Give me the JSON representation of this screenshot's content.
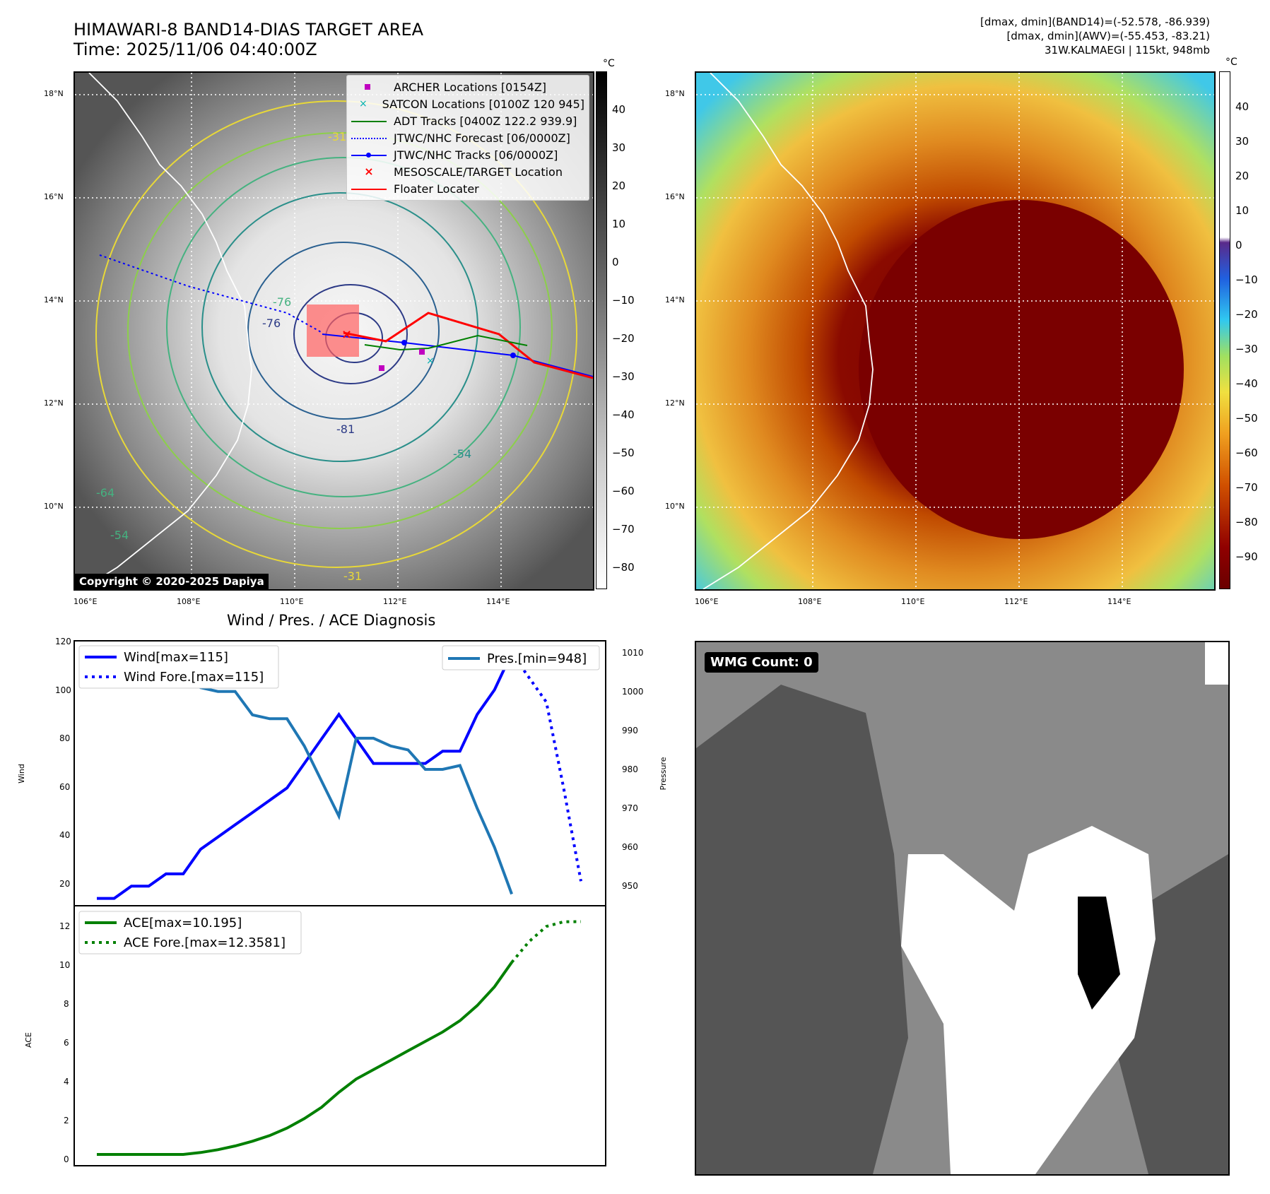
{
  "header": {
    "title_line1": "HIMAWARI-8 BAND14-DIAS TARGET AREA",
    "title_line2": "Time: 2025/11/06 04:40:00Z",
    "info_line1": "[dmax, dmin](BAND14)=(-52.578, -86.939)",
    "info_line2": "[dmax, dmin](AWV)=(-55.453, -83.21)",
    "info_line3": "31W.KALMAEGI | 115kt, 948mb"
  },
  "map_axes": {
    "lat_labels": [
      "18°N",
      "16°N",
      "14°N",
      "12°N",
      "10°N"
    ],
    "lon_labels": [
      "106°E",
      "108°E",
      "110°E",
      "112°E",
      "114°E"
    ]
  },
  "colorbar_left": {
    "unit": "°C",
    "ticks": [
      "40",
      "30",
      "20",
      "10",
      "0",
      "−10",
      "−20",
      "−30",
      "−40",
      "−50",
      "−60",
      "−70",
      "−80"
    ]
  },
  "colorbar_right": {
    "unit": "°C",
    "ticks": [
      "40",
      "30",
      "20",
      "10",
      "0",
      "−10",
      "−20",
      "−30",
      "−40",
      "−50",
      "−60",
      "−70",
      "−80",
      "−90"
    ]
  },
  "map_legend": [
    {
      "label": "ARCHER Locations [0154Z]",
      "color": "#c000c0",
      "marker": "square"
    },
    {
      "label": "SATCON Locations [0100Z 120 945]",
      "color": "#00b0b0",
      "marker": "x"
    },
    {
      "label": "ADT Tracks [0400Z 122.2 939.9]",
      "color": "#008000",
      "marker": "line"
    },
    {
      "label": "JTWC/NHC Forecast [06/0000Z]",
      "color": "#0000ff",
      "marker": "dotted"
    },
    {
      "label": "JTWC/NHC Tracks [06/0000Z]",
      "color": "#0000ff",
      "marker": "line-dot"
    },
    {
      "label": "MESOSCALE/TARGET Location",
      "color": "#ff0000",
      "marker": "x"
    },
    {
      "label": "Floater Locater",
      "color": "#ff0000",
      "marker": "line"
    }
  ],
  "contour_labels": [
    "-31",
    "-76",
    "-81",
    "-54",
    "-64",
    "-54",
    "-76",
    "-31"
  ],
  "copyright": "Copyright © 2020-2025 Dapiya",
  "wmg_label": "WMG Count: 0",
  "chart_data": [
    {
      "type": "line",
      "title": "Wind / Pres. / ACE Diagnosis",
      "ylabel": "Wind",
      "ylabel_right": "Pressure",
      "ylim": [
        12,
        120
      ],
      "ylim_right": [
        945,
        1013
      ],
      "yticks": [
        "120",
        "100",
        "80",
        "60",
        "40",
        "20"
      ],
      "yticks_right": [
        "1010",
        "1000",
        "990",
        "980",
        "970",
        "960",
        "950"
      ],
      "series": [
        {
          "name": "Wind[max=115]",
          "axis": "left",
          "color": "#0000ff",
          "style": "solid",
          "x": [
            0,
            1,
            2,
            3,
            4,
            5,
            6,
            7,
            8,
            9,
            10,
            11,
            12,
            13,
            14,
            15,
            16,
            17,
            18,
            19,
            20,
            21,
            22,
            23,
            24
          ],
          "values": [
            15,
            15,
            20,
            20,
            25,
            25,
            35,
            40,
            45,
            50,
            55,
            60,
            70,
            80,
            90,
            80,
            70,
            70,
            70,
            70,
            75,
            75,
            90,
            100,
            115
          ]
        },
        {
          "name": "Wind Fore.[max=115]",
          "axis": "left",
          "color": "#0000ff",
          "style": "dotted",
          "x": [
            24,
            25,
            26,
            27,
            28
          ],
          "values": [
            115,
            105,
            95,
            60,
            22
          ]
        },
        {
          "name": "Pres.[min=948]",
          "axis": "right",
          "color": "#1f77b4",
          "style": "solid",
          "x": [
            0,
            1,
            2,
            3,
            4,
            5,
            6,
            7,
            8,
            9,
            10,
            11,
            12,
            13,
            14,
            15,
            16,
            17,
            18,
            19,
            20,
            21,
            22,
            23,
            24
          ],
          "values": [
            1010,
            1008,
            1008,
            1008,
            1006,
            1004,
            1001,
            1000,
            1000,
            994,
            993,
            993,
            986,
            977,
            968,
            988,
            988,
            986,
            985,
            980,
            980,
            981,
            970,
            960,
            948
          ]
        }
      ]
    },
    {
      "type": "line",
      "ylabel": "ACE",
      "ylim": [
        -0.6,
        13.2
      ],
      "yticks": [
        "12",
        "10",
        "8",
        "6",
        "4",
        "2",
        "0"
      ],
      "series": [
        {
          "name": "ACE[max=10.195]",
          "color": "#008000",
          "style": "solid",
          "x": [
            0,
            1,
            2,
            3,
            4,
            5,
            6,
            7,
            8,
            9,
            10,
            11,
            12,
            13,
            14,
            15,
            16,
            17,
            18,
            19,
            20,
            21,
            22,
            23,
            24
          ],
          "values": [
            0,
            0,
            0,
            0,
            0,
            0,
            0.1,
            0.25,
            0.45,
            0.7,
            1.0,
            1.4,
            1.9,
            2.5,
            3.3,
            4.0,
            4.5,
            5.0,
            5.5,
            6.0,
            6.5,
            7.1,
            7.9,
            8.9,
            10.195
          ]
        },
        {
          "name": "ACE Fore.[max=12.3581]",
          "color": "#008000",
          "style": "dotted",
          "x": [
            24,
            25,
            26,
            27,
            28
          ],
          "values": [
            10.195,
            11.3,
            12.1,
            12.35,
            12.3581
          ]
        }
      ]
    }
  ]
}
